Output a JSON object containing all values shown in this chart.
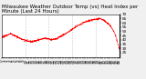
{
  "title": "Milwaukee Weather Outdoor Temp (vs) Heat Index per Minute (Last 24 Hours)",
  "background_color": "#f0f0f0",
  "plot_bg_color": "#ffffff",
  "line_color": "#ff0000",
  "grid_color": "#bbbbbb",
  "ylim": [
    20,
    70
  ],
  "yticks": [
    25,
    30,
    35,
    40,
    45,
    50,
    55,
    60,
    65,
    70
  ],
  "ctrl_x": [
    0,
    60,
    120,
    180,
    240,
    300,
    360,
    420,
    480,
    540,
    600,
    660,
    720,
    780,
    840,
    900,
    960,
    1020,
    1080,
    1140,
    1200,
    1260,
    1320,
    1380,
    1439
  ],
  "ctrl_y": [
    43,
    45,
    47,
    44,
    41,
    39,
    38,
    39,
    41,
    42,
    40,
    41,
    44,
    47,
    51,
    55,
    58,
    61,
    63,
    64,
    65,
    62,
    57,
    48,
    27
  ],
  "vline_positions": [
    288,
    576,
    864,
    1152
  ],
  "title_fontsize": 4,
  "tick_fontsize": 3,
  "num_points": 1440
}
